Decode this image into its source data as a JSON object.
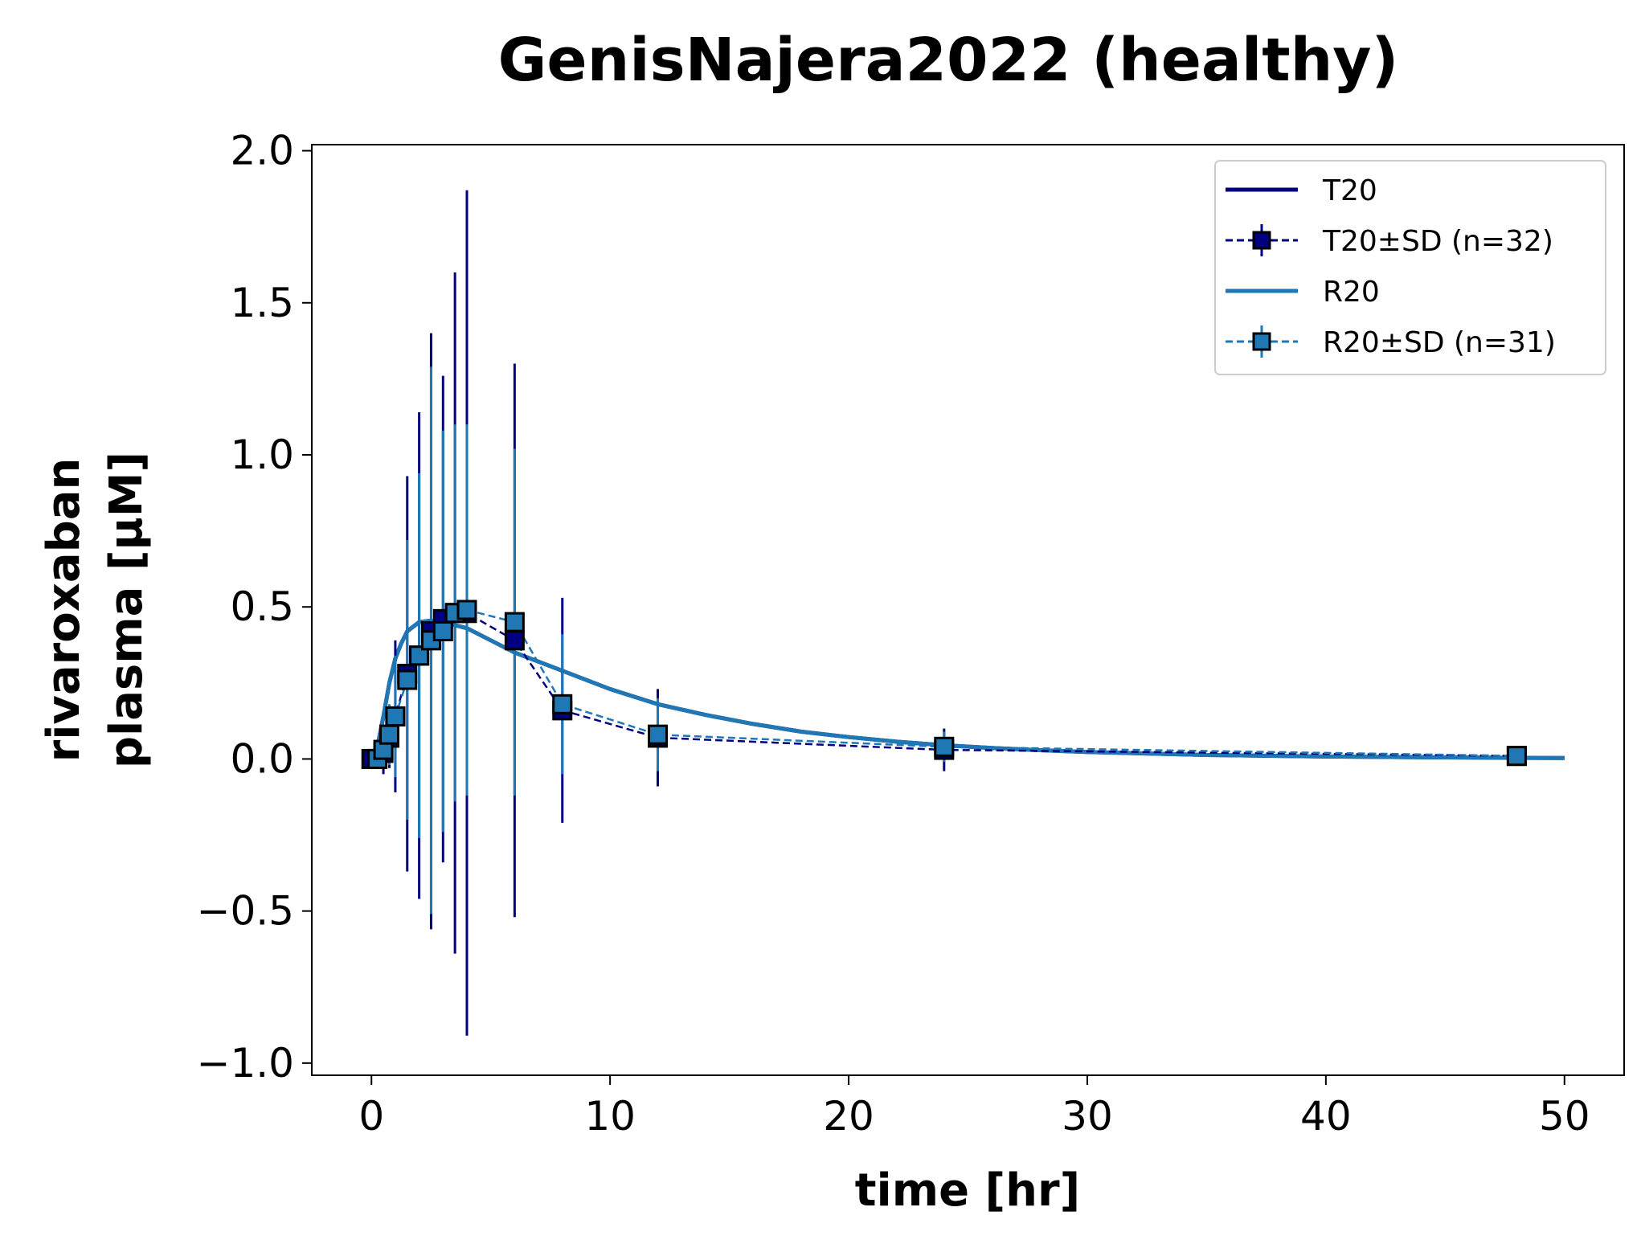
{
  "chart_data": {
    "type": "line",
    "title": "GenisNajera2022 (healthy)",
    "xlabel": "time [hr]",
    "ylabel_lines": [
      "rivaroxaban",
      "plasma [μM]"
    ],
    "xlim": [
      -2.5,
      52.5
    ],
    "ylim": [
      -1.04,
      2.02
    ],
    "x_ticks": [
      0,
      10,
      20,
      30,
      40,
      50
    ],
    "x_tick_labels": [
      "0",
      "10",
      "20",
      "30",
      "40",
      "50"
    ],
    "y_ticks": [
      -1.0,
      -0.5,
      0.0,
      0.5,
      1.0,
      1.5,
      2.0
    ],
    "y_tick_labels": [
      "−1.0",
      "−0.5",
      "0.0",
      "0.5",
      "1.0",
      "1.5",
      "2.0"
    ],
    "grid": false,
    "legend_position": "top-right",
    "series": [
      {
        "name": "T20",
        "kind": "line",
        "color": "#000080",
        "x": [
          0,
          0.25,
          0.5,
          0.75,
          1,
          1.25,
          1.5,
          2,
          2.5,
          3,
          3.5,
          4,
          5,
          6,
          7,
          8,
          10,
          12,
          14,
          16,
          18,
          20,
          22,
          24,
          26,
          28,
          30,
          35,
          40,
          45,
          50
        ],
        "y": [
          0,
          0.04,
          0.14,
          0.25,
          0.33,
          0.38,
          0.42,
          0.45,
          0.455,
          0.45,
          0.44,
          0.43,
          0.39,
          0.35,
          0.32,
          0.29,
          0.23,
          0.18,
          0.145,
          0.115,
          0.09,
          0.072,
          0.057,
          0.045,
          0.036,
          0.029,
          0.023,
          0.013,
          0.008,
          0.005,
          0.003
        ]
      },
      {
        "name": "T20±SD (n=32)",
        "kind": "errorbar",
        "color": "#000080",
        "x": [
          0,
          0.5,
          0.75,
          1,
          1.5,
          2,
          2.5,
          3,
          3.5,
          4,
          6,
          8,
          12,
          24,
          48
        ],
        "y": [
          0,
          0.02,
          0.07,
          0.14,
          0.28,
          0.34,
          0.42,
          0.46,
          0.48,
          0.48,
          0.39,
          0.16,
          0.07,
          0.03,
          0.01
        ],
        "sd": [
          0,
          0.07,
          0.1,
          0.25,
          0.65,
          0.8,
          0.98,
          0.8,
          1.12,
          1.39,
          0.91,
          0.37,
          0.16,
          0.07,
          0.02
        ]
      },
      {
        "name": "R20",
        "kind": "line",
        "color": "#1f77b4",
        "x": [
          0,
          0.25,
          0.5,
          0.75,
          1,
          1.25,
          1.5,
          2,
          2.5,
          3,
          3.5,
          4,
          5,
          6,
          7,
          8,
          10,
          12,
          14,
          16,
          18,
          20,
          22,
          24,
          26,
          28,
          30,
          35,
          40,
          45,
          50
        ],
        "y": [
          0,
          0.04,
          0.14,
          0.25,
          0.33,
          0.38,
          0.42,
          0.45,
          0.455,
          0.45,
          0.44,
          0.43,
          0.39,
          0.35,
          0.32,
          0.29,
          0.23,
          0.18,
          0.145,
          0.115,
          0.09,
          0.072,
          0.057,
          0.045,
          0.036,
          0.029,
          0.023,
          0.013,
          0.008,
          0.005,
          0.003
        ]
      },
      {
        "name": "R20±SD (n=31)",
        "kind": "errorbar",
        "color": "#1f77b4",
        "x": [
          0.25,
          0.5,
          0.75,
          1,
          1.5,
          2,
          2.5,
          3,
          3.5,
          4,
          6,
          8,
          12,
          24,
          48
        ],
        "y": [
          0.0,
          0.03,
          0.08,
          0.14,
          0.26,
          0.34,
          0.39,
          0.42,
          0.48,
          0.49,
          0.45,
          0.18,
          0.08,
          0.04,
          0.01
        ],
        "sd": [
          0.02,
          0.06,
          0.1,
          0.2,
          0.46,
          0.6,
          0.9,
          0.66,
          0.62,
          0.61,
          0.57,
          0.23,
          0.12,
          0.05,
          0.02
        ]
      }
    ]
  }
}
